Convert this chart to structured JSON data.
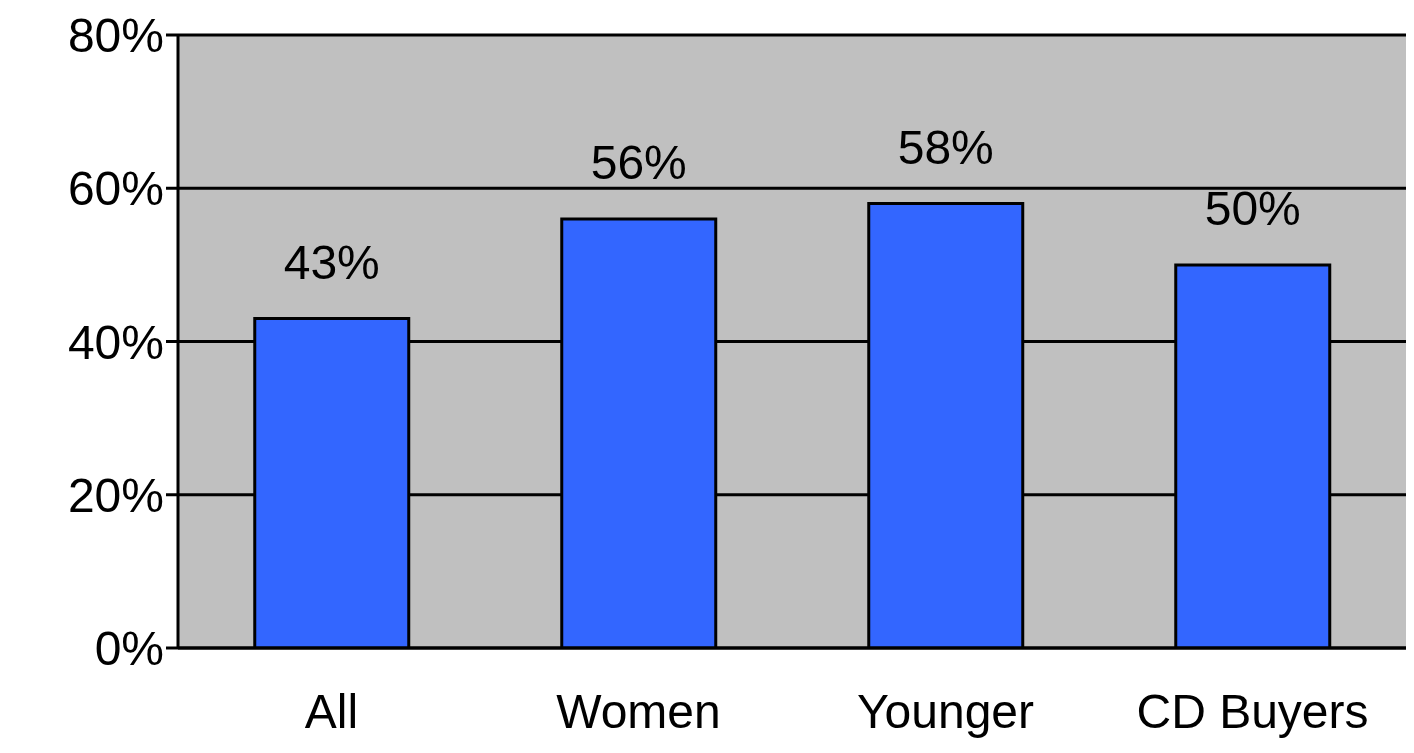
{
  "chart_data": {
    "type": "bar",
    "categories": [
      "All",
      "Women",
      "Younger",
      "CD Buyers"
    ],
    "values": [
      43,
      56,
      58,
      50
    ],
    "color": "#3366ff",
    "value_labels": [
      "43%",
      "56%",
      "58%",
      "50%"
    ],
    "ylim": [
      0,
      80
    ],
    "yticks": [
      {
        "value": 0,
        "label": "0%"
      },
      {
        "value": 20,
        "label": "20%"
      },
      {
        "value": 40,
        "label": "40%"
      },
      {
        "value": 60,
        "label": "60%"
      },
      {
        "value": 80,
        "label": "80%"
      }
    ],
    "grid": "y"
  }
}
